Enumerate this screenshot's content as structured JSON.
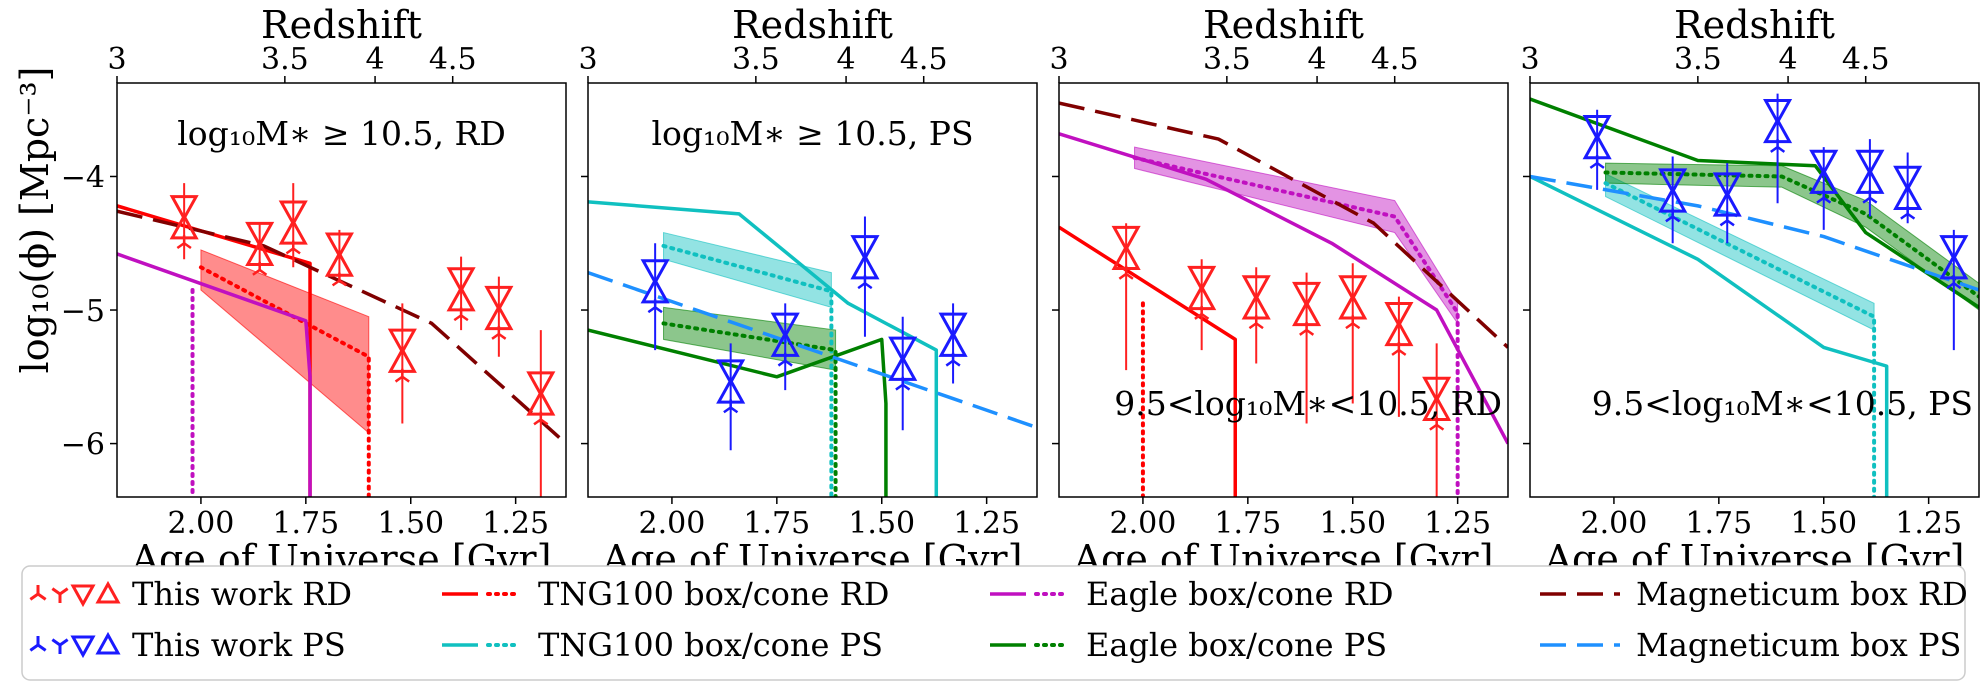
{
  "chart_data": {
    "type": "line",
    "figure_title": "",
    "ylabel": "log₁₀(ϕ) [Mpc⁻³]",
    "ylim": [
      -6.4,
      -3.3
    ],
    "yticks": [
      -4,
      -5,
      -6
    ],
    "xlim": [
      2.2,
      1.13
    ],
    "xticks": [
      2.0,
      1.75,
      1.5,
      1.25
    ],
    "xtick_labels": [
      "2.00",
      "1.75",
      "1.50",
      "1.25"
    ],
    "xlabel": "Age of Universe [Gyr]",
    "top_xlabel": "Redshift",
    "top_ticks": [
      {
        "z": 3,
        "age": 2.2,
        "label": "3"
      },
      {
        "z": 3.5,
        "age": 1.8,
        "label": "3.5"
      },
      {
        "z": 4,
        "age": 1.585,
        "label": "4"
      },
      {
        "z": 4.5,
        "age": 1.4,
        "label": "4.5"
      }
    ],
    "panels": [
      {
        "id": "p1",
        "annotation": "log₁₀M∗ ≥ 10.5, RD",
        "annotation_position": "top-center",
        "observations": {
          "color": "#ff2020",
          "points": [
            {
              "x": 2.04,
              "y": -4.32,
              "lo": -4.62,
              "hi": -4.05
            },
            {
              "x": 1.86,
              "y": -4.52,
              "lo": -4.68,
              "hi": -4.36
            },
            {
              "x": 1.78,
              "y": -4.36,
              "lo": -4.68,
              "hi": -4.05
            },
            {
              "x": 1.67,
              "y": -4.6,
              "lo": -4.78,
              "hi": -4.4
            },
            {
              "x": 1.52,
              "y": -5.32,
              "lo": -5.85,
              "hi": -4.95
            },
            {
              "x": 1.38,
              "y": -4.86,
              "lo": -5.15,
              "hi": -4.6
            },
            {
              "x": 1.29,
              "y": -5.0,
              "lo": -5.35,
              "hi": -4.75
            },
            {
              "x": 1.19,
              "y": -5.64,
              "lo": -6.4,
              "hi": -5.15
            }
          ]
        },
        "series": [
          {
            "name": "TNG100 box RD",
            "color": "#ff0000",
            "style": "solid",
            "x": [
              2.2,
              1.74,
              1.74
            ],
            "y": [
              -4.22,
              -4.65,
              -6.4
            ]
          },
          {
            "name": "TNG100 cone RD",
            "color": "#ff0000",
            "style": "dotted",
            "x": [
              2.0,
              1.6,
              1.6
            ],
            "y": [
              -4.68,
              -5.35,
              -6.4
            ],
            "band_hi": [
              -4.55,
              -5.05
            ],
            "band_lo": [
              -4.85,
              -5.92
            ]
          },
          {
            "name": "Eagle box RD",
            "color": "#c010c0",
            "style": "solid",
            "x": [
              2.2,
              1.75,
              1.74,
              1.74
            ],
            "y": [
              -4.58,
              -5.08,
              -5.5,
              -6.4
            ]
          },
          {
            "name": "Eagle cone RD",
            "color": "#c010c0",
            "style": "dotted",
            "x": [
              2.02,
              2.02
            ],
            "y": [
              -4.85,
              -6.4
            ]
          },
          {
            "name": "Magneticum box RD",
            "color": "#800000",
            "style": "dashed",
            "x": [
              2.2,
              1.85,
              1.45,
              1.13
            ],
            "y": [
              -4.26,
              -4.52,
              -5.1,
              -6.0
            ]
          }
        ]
      },
      {
        "id": "p2",
        "annotation": "log₁₀M∗ ≥ 10.5, PS",
        "annotation_position": "top-center",
        "observations": {
          "color": "#1a1aff",
          "points": [
            {
              "x": 2.04,
              "y": -4.8,
              "lo": -5.3,
              "hi": -4.5
            },
            {
              "x": 1.86,
              "y": -5.55,
              "lo": -6.05,
              "hi": -5.25
            },
            {
              "x": 1.73,
              "y": -5.2,
              "lo": -5.6,
              "hi": -4.95
            },
            {
              "x": 1.54,
              "y": -4.62,
              "lo": -5.2,
              "hi": -4.3
            },
            {
              "x": 1.45,
              "y": -5.38,
              "lo": -5.9,
              "hi": -5.05
            },
            {
              "x": 1.33,
              "y": -5.2,
              "lo": -5.55,
              "hi": -4.95
            }
          ]
        },
        "series": [
          {
            "name": "TNG100 box PS",
            "color": "#10c0c0",
            "style": "solid",
            "x": [
              2.2,
              1.84,
              1.58,
              1.37,
              1.37
            ],
            "y": [
              -4.19,
              -4.28,
              -4.95,
              -5.3,
              -6.4
            ]
          },
          {
            "name": "TNG100 cone PS",
            "color": "#10c0c0",
            "style": "dotted",
            "x": [
              2.02,
              1.62,
              1.62
            ],
            "y": [
              -4.52,
              -4.86,
              -6.4
            ],
            "band_hi": [
              -4.42,
              -4.72
            ],
            "band_lo": [
              -4.62,
              -4.98
            ]
          },
          {
            "name": "Eagle box PS",
            "color": "#008000",
            "style": "solid",
            "x": [
              2.2,
              1.75,
              1.5,
              1.49,
              1.49
            ],
            "y": [
              -5.15,
              -5.5,
              -5.22,
              -5.7,
              -6.4
            ]
          },
          {
            "name": "Eagle cone PS",
            "color": "#008000",
            "style": "dotted",
            "x": [
              2.02,
              1.61,
              1.61
            ],
            "y": [
              -5.1,
              -5.3,
              -6.4
            ],
            "band_hi": [
              -4.98,
              -5.15
            ],
            "band_lo": [
              -5.22,
              -5.45
            ]
          },
          {
            "name": "Magneticum box PS",
            "color": "#1e90ff",
            "style": "dashed",
            "x": [
              2.2,
              1.13
            ],
            "y": [
              -4.72,
              -5.88
            ]
          }
        ]
      },
      {
        "id": "p3",
        "annotation": "9.5<log₁₀M∗<10.5, RD",
        "annotation_position": "bottom-right",
        "observations": {
          "color": "#ff2020",
          "points": [
            {
              "x": 2.04,
              "y": -4.55,
              "lo": -5.45,
              "hi": -4.35
            },
            {
              "x": 1.86,
              "y": -4.85,
              "lo": -5.3,
              "hi": -4.62
            },
            {
              "x": 1.73,
              "y": -4.92,
              "lo": -5.4,
              "hi": -4.68
            },
            {
              "x": 1.61,
              "y": -4.97,
              "lo": -5.85,
              "hi": -4.72
            },
            {
              "x": 1.5,
              "y": -4.92,
              "lo": -5.7,
              "hi": -4.65
            },
            {
              "x": 1.39,
              "y": -5.12,
              "lo": -5.8,
              "hi": -4.9
            },
            {
              "x": 1.3,
              "y": -5.68,
              "lo": -6.4,
              "hi": -5.25
            }
          ]
        },
        "series": [
          {
            "name": "TNG100 box RD",
            "color": "#ff0000",
            "style": "solid",
            "x": [
              2.2,
              1.78,
              1.78
            ],
            "y": [
              -4.38,
              -5.22,
              -6.4
            ]
          },
          {
            "name": "TNG100 cone RD",
            "color": "#ff0000",
            "style": "dotted",
            "x": [
              2.0,
              2.0
            ],
            "y": [
              -4.95,
              -6.4
            ]
          },
          {
            "name": "Eagle box RD",
            "color": "#c010c0",
            "style": "solid",
            "x": [
              2.2,
              1.85,
              1.55,
              1.3,
              1.13
            ],
            "y": [
              -3.68,
              -4.02,
              -4.5,
              -5.0,
              -6.0
            ]
          },
          {
            "name": "Eagle cone RD",
            "color": "#c010c0",
            "style": "dotted",
            "x": [
              2.02,
              1.4,
              1.25,
              1.25
            ],
            "y": [
              -3.86,
              -4.3,
              -5.02,
              -6.4
            ],
            "band_hi": [
              -3.78,
              -4.18,
              -4.95
            ],
            "band_lo": [
              -3.94,
              -4.42,
              -5.1
            ]
          },
          {
            "name": "Magneticum box RD",
            "color": "#800000",
            "style": "dashed",
            "x": [
              2.2,
              1.82,
              1.45,
              1.13
            ],
            "y": [
              -3.45,
              -3.72,
              -4.35,
              -5.28
            ]
          }
        ]
      },
      {
        "id": "p4",
        "annotation": "9.5<log₁₀M∗<10.5, PS",
        "annotation_position": "bottom-right",
        "observations": {
          "color": "#1a1aff",
          "points": [
            {
              "x": 2.04,
              "y": -3.72,
              "lo": -4.1,
              "hi": -3.5
            },
            {
              "x": 1.86,
              "y": -4.12,
              "lo": -4.5,
              "hi": -3.85
            },
            {
              "x": 1.73,
              "y": -4.15,
              "lo": -4.5,
              "hi": -3.9
            },
            {
              "x": 1.61,
              "y": -3.6,
              "lo": -4.2,
              "hi": -3.38
            },
            {
              "x": 1.5,
              "y": -3.98,
              "lo": -4.4,
              "hi": -3.78
            },
            {
              "x": 1.39,
              "y": -3.98,
              "lo": -4.3,
              "hi": -3.72
            },
            {
              "x": 1.3,
              "y": -4.1,
              "lo": -4.35,
              "hi": -3.82
            },
            {
              "x": 1.19,
              "y": -4.62,
              "lo": -5.3,
              "hi": -4.4
            }
          ]
        },
        "series": [
          {
            "name": "TNG100 box PS",
            "color": "#10c0c0",
            "style": "solid",
            "x": [
              2.2,
              1.8,
              1.5,
              1.35,
              1.35
            ],
            "y": [
              -4.0,
              -4.62,
              -5.28,
              -5.42,
              -6.4
            ]
          },
          {
            "name": "TNG100 cone PS",
            "color": "#10c0c0",
            "style": "dotted",
            "x": [
              2.02,
              1.38,
              1.38
            ],
            "y": [
              -4.05,
              -5.05,
              -6.4
            ],
            "band_hi": [
              -3.98,
              -4.95
            ],
            "band_lo": [
              -4.15,
              -5.15
            ]
          },
          {
            "name": "Eagle box PS",
            "color": "#008000",
            "style": "solid",
            "x": [
              2.2,
              1.8,
              1.52,
              1.4,
              1.13
            ],
            "y": [
              -3.42,
              -3.88,
              -3.92,
              -4.42,
              -4.98
            ]
          },
          {
            "name": "Eagle cone PS",
            "color": "#008000",
            "style": "dotted",
            "x": [
              2.02,
              1.6,
              1.4,
              1.13
            ],
            "y": [
              -3.97,
              -4.0,
              -4.28,
              -4.9
            ],
            "band_hi": [
              -3.9,
              -3.92,
              -4.18,
              -4.8
            ],
            "band_lo": [
              -4.05,
              -4.08,
              -4.38,
              -5.0
            ]
          },
          {
            "name": "Magneticum box PS",
            "color": "#1e90ff",
            "style": "dashed",
            "x": [
              2.2,
              1.8,
              1.5,
              1.13
            ],
            "y": [
              -4.0,
              -4.22,
              -4.45,
              -4.85
            ]
          }
        ]
      }
    ],
    "legend": {
      "placement": "bottom",
      "entries": [
        {
          "label": "This work RD",
          "kind": "markers",
          "color": "#ff2020"
        },
        {
          "label": "TNG100 box/cone RD",
          "kind": "line-dot",
          "color": "#ff0000"
        },
        {
          "label": "Eagle box/cone RD",
          "kind": "line-dot",
          "color": "#c010c0"
        },
        {
          "label": "Magneticum box RD",
          "kind": "dashed",
          "color": "#800000"
        },
        {
          "label": "This work PS",
          "kind": "markers",
          "color": "#1a1aff"
        },
        {
          "label": "TNG100 box/cone PS",
          "kind": "line-dot",
          "color": "#10c0c0"
        },
        {
          "label": "Eagle box/cone PS",
          "kind": "line-dot",
          "color": "#008000"
        },
        {
          "label": "Magneticum box PS",
          "kind": "dashed",
          "color": "#1e90ff"
        }
      ]
    }
  }
}
